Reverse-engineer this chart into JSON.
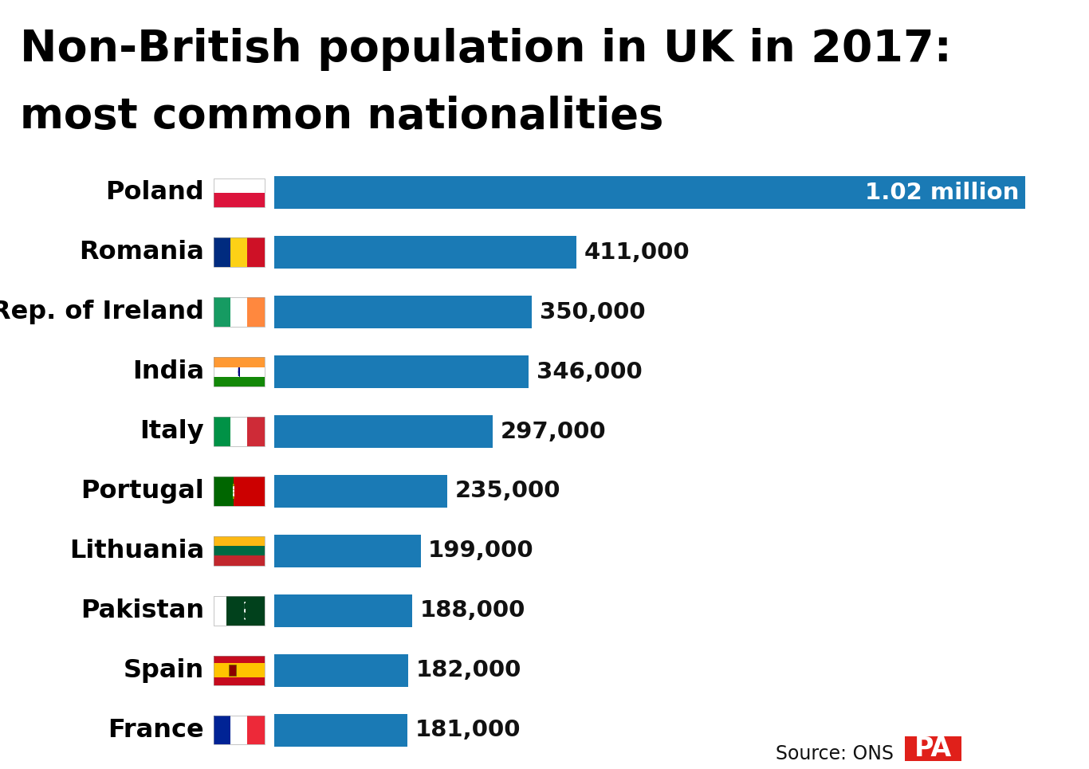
{
  "title_line1": "Non-British population in UK in 2017:",
  "title_line2": "most common nationalities",
  "bg_chart": "#b8d9ed",
  "bg_title": "#ffffff",
  "bar_color": "#1a7ab5",
  "countries": [
    "Poland",
    "Romania",
    "Rep. of Ireland",
    "India",
    "Italy",
    "Portugal",
    "Lithuania",
    "Pakistan",
    "Spain",
    "France"
  ],
  "values": [
    1020000,
    411000,
    350000,
    346000,
    297000,
    235000,
    199000,
    188000,
    182000,
    181000
  ],
  "labels": [
    "1.02 million",
    "411,000",
    "350,000",
    "346,000",
    "297,000",
    "235,000",
    "199,000",
    "188,000",
    "182,000",
    "181,000"
  ],
  "source_text": "Source: ONS",
  "pa_color": "#e0201a",
  "pa_text": "PA",
  "sep_color": "#444444",
  "title_fontsize": 40,
  "subtitle_fontsize": 38,
  "value_fontsize": 21,
  "country_fontsize": 23,
  "source_fontsize": 17,
  "pa_fontsize": 24
}
